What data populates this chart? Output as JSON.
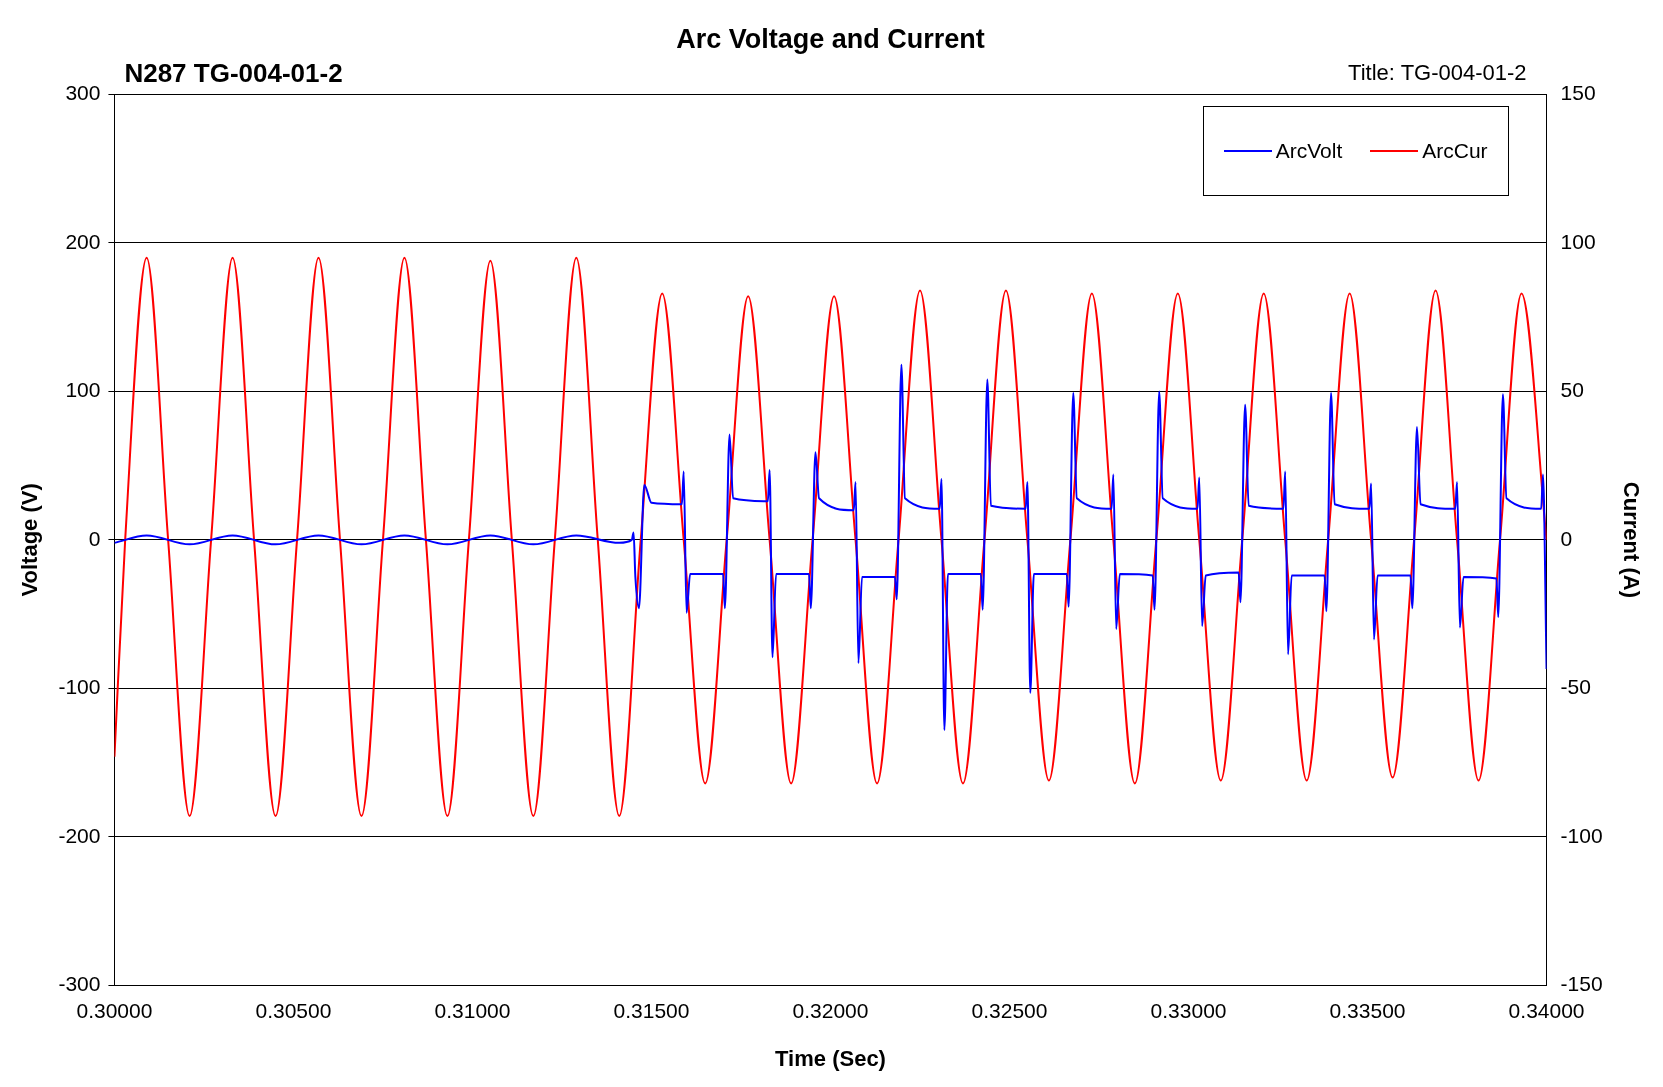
{
  "chart_data": {
    "type": "line",
    "title": "Arc Voltage and Current",
    "xlabel": "Time (Sec)",
    "ylabel": "Voltage (V)",
    "y2label": "Current (A)",
    "annotations": [
      "N287  TG-004-01-2",
      "Title: TG-004-01-2"
    ],
    "xlim": [
      0.3,
      0.34
    ],
    "xticks": [
      {
        "value": 0.3,
        "label": "0.30000"
      },
      {
        "value": 0.305,
        "label": "0.30500"
      },
      {
        "value": 0.31,
        "label": "0.31000"
      },
      {
        "value": 0.315,
        "label": "0.31500"
      },
      {
        "value": 0.32,
        "label": "0.32000"
      },
      {
        "value": 0.325,
        "label": "0.32500"
      },
      {
        "value": 0.33,
        "label": "0.33000"
      },
      {
        "value": 0.335,
        "label": "0.33500"
      },
      {
        "value": 0.34,
        "label": "0.34000"
      }
    ],
    "ylim": [
      -300,
      300
    ],
    "yticks": [
      -300,
      -200,
      -100,
      0,
      100,
      200,
      300
    ],
    "y2lim": [
      -150,
      150
    ],
    "y2ticks": [
      -150,
      -100,
      -50,
      0,
      50,
      100,
      150
    ],
    "grid": "y",
    "legend": "top right",
    "marker": "none",
    "line_style": "solid",
    "series": [
      {
        "name": "ArcVolt",
        "color": "#0000ff",
        "axis": "y",
        "x": [
          0.3,
          0.3009,
          0.3021,
          0.3033,
          0.3045,
          0.3057,
          0.3069,
          0.3081,
          0.3093,
          0.3105,
          0.3117,
          0.3129,
          0.3141,
          0.31445,
          0.3145,
          0.31455,
          0.31465,
          0.3148,
          0.315,
          0.31585,
          0.3159,
          0.31598,
          0.31608,
          0.317,
          0.31705,
          0.31718,
          0.31728,
          0.31825,
          0.3183,
          0.31838,
          0.31848,
          0.3194,
          0.31945,
          0.31958,
          0.31968,
          0.32065,
          0.3207,
          0.32078,
          0.32088,
          0.3218,
          0.32185,
          0.32198,
          0.32208,
          0.32305,
          0.3231,
          0.32318,
          0.32328,
          0.3242,
          0.32425,
          0.32438,
          0.32448,
          0.32545,
          0.3255,
          0.32558,
          0.32568,
          0.3266,
          0.32665,
          0.32678,
          0.32688,
          0.32785,
          0.3279,
          0.32798,
          0.32808,
          0.329,
          0.32905,
          0.32918,
          0.32928,
          0.33025,
          0.3303,
          0.33038,
          0.33048,
          0.3314,
          0.33145,
          0.33158,
          0.33168,
          0.33265,
          0.3327,
          0.33278,
          0.33288,
          0.3338,
          0.33385,
          0.33398,
          0.33408,
          0.33505,
          0.3351,
          0.33518,
          0.33528,
          0.3362,
          0.33625,
          0.33638,
          0.33648,
          0.33745,
          0.3375,
          0.33758,
          0.33768,
          0.3386,
          0.33865,
          0.33878,
          0.33888,
          0.33985,
          0.3399,
          0.34
        ],
        "values": [
          -2,
          3,
          -3,
          3,
          -3,
          3,
          -3,
          3,
          -3,
          3,
          -3,
          3,
          -2,
          0,
          5,
          -25,
          -46,
          37,
          25,
          24,
          46,
          -49,
          -23,
          -23,
          -46,
          71,
          28,
          26,
          47,
          -79,
          -23,
          -23,
          -46,
          59,
          28,
          20,
          39,
          -83,
          -25,
          -25,
          -40,
          118,
          28,
          21,
          41,
          -128,
          -23,
          -23,
          -47,
          108,
          23,
          21,
          39,
          -103,
          -23,
          -23,
          -45,
          99,
          28,
          21,
          44,
          -60,
          -23,
          -24,
          -47,
          100,
          28,
          21,
          42,
          -58,
          -24,
          -22,
          -42,
          91,
          23,
          21,
          46,
          -77,
          -24,
          -24,
          -48,
          99,
          24,
          21,
          38,
          -67,
          -24,
          -24,
          -46,
          76,
          24,
          21,
          39,
          -59,
          -25,
          -26,
          -52,
          98,
          28,
          21,
          44,
          -87
        ]
      },
      {
        "name": "ArcCur",
        "color": "#ff0000",
        "axis": "y2",
        "x": [
          0.3,
          0.3003,
          0.3009,
          0.3015,
          0.3021,
          0.3027,
          0.3033,
          0.3039,
          0.3045,
          0.3051,
          0.3057,
          0.3063,
          0.3069,
          0.3075,
          0.3081,
          0.3087,
          0.3093,
          0.3099,
          0.3105,
          0.3111,
          0.3117,
          0.3123,
          0.3129,
          0.3135,
          0.3141,
          0.3147,
          0.3153,
          0.3159,
          0.3165,
          0.3171,
          0.3177,
          0.3183,
          0.3189,
          0.3195,
          0.3201,
          0.3207,
          0.3213,
          0.3219,
          0.3225,
          0.3231,
          0.3237,
          0.3243,
          0.3249,
          0.3255,
          0.3261,
          0.3267,
          0.3273,
          0.3279,
          0.3285,
          0.3291,
          0.3297,
          0.3303,
          0.3309,
          0.3315,
          0.3321,
          0.3327,
          0.3333,
          0.3339,
          0.3345,
          0.3351,
          0.3357,
          0.3363,
          0.3369,
          0.3375,
          0.3381,
          0.3387,
          0.3393,
          0.34
        ],
        "values": [
          -73,
          0,
          95,
          0,
          -93,
          0,
          95,
          0,
          -93,
          0,
          95,
          0,
          -93,
          0,
          95,
          0,
          -93,
          0,
          94,
          0,
          -93,
          0,
          95,
          0,
          -93,
          0,
          83,
          0,
          -82,
          0,
          82,
          0,
          -82,
          0,
          82,
          0,
          -82,
          0,
          84,
          0,
          -82,
          0,
          84,
          0,
          -81,
          0,
          83,
          0,
          -82,
          0,
          83,
          0,
          -81,
          0,
          83,
          0,
          -81,
          0,
          83,
          0,
          -80,
          0,
          84,
          0,
          -81,
          0,
          83,
          0
        ]
      }
    ]
  }
}
